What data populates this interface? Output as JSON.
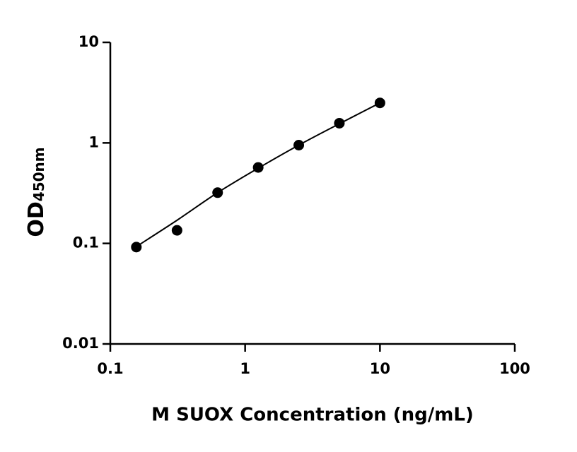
{
  "chart_data": {
    "type": "scatter",
    "x_label": "M SUOX Concentration (ng/mL)",
    "y_label": {
      "text": "OD",
      "subscript": "450nm"
    },
    "x": [
      0.156,
      0.3125,
      0.625,
      1.25,
      2.5,
      5,
      10
    ],
    "series": [
      {
        "mode": "markers",
        "color": "#000000",
        "values": [
          0.092,
          0.135,
          0.32,
          0.57,
          0.95,
          1.57,
          2.5
        ]
      },
      {
        "mode": "line",
        "color": "#000000",
        "values": [
          0.093,
          0.17,
          0.32,
          0.56,
          0.95,
          1.55,
          2.5
        ]
      }
    ],
    "x_log": true,
    "y_log": true,
    "xlim": [
      0.1,
      100
    ],
    "xticks": [
      0.1,
      1,
      10,
      100
    ],
    "ylim": [
      0.01,
      10
    ],
    "yticks": [
      0.01,
      0.1,
      1,
      10
    ],
    "grid": false
  }
}
